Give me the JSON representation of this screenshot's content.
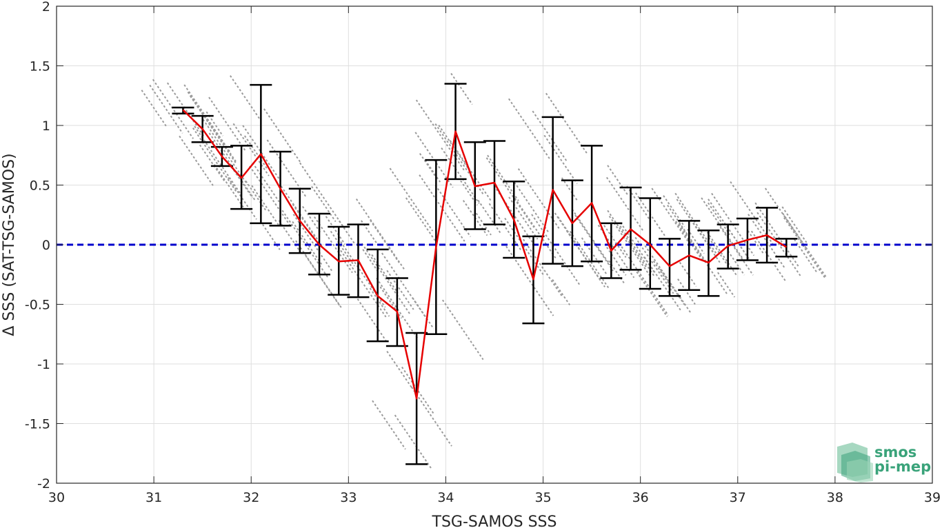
{
  "chart_data": {
    "type": "line",
    "xlabel": "TSG-SAMOS SSS",
    "ylabel": "Δ SSS (SAT-TSG-SAMOS)",
    "xlim": [
      30,
      39
    ],
    "ylim": [
      -2,
      2
    ],
    "xticks": [
      30,
      31,
      32,
      33,
      34,
      35,
      36,
      37,
      38,
      39
    ],
    "yticks": [
      -2,
      -1.5,
      -1,
      -0.5,
      0,
      0.5,
      1,
      1.5,
      2
    ],
    "grid": true,
    "reference_line": {
      "y": 0,
      "color": "#0000cc",
      "style": "dashed"
    },
    "series": [
      {
        "color": "#e60000",
        "x": [
          31.3,
          31.5,
          31.7,
          31.9,
          32.1,
          32.3,
          32.5,
          32.7,
          32.9,
          33.1,
          33.3,
          33.5,
          33.7,
          33.9,
          34.1,
          34.3,
          34.5,
          34.7,
          34.9,
          35.1,
          35.3,
          35.5,
          35.7,
          35.9,
          36.1,
          36.3,
          36.5,
          36.7,
          36.9,
          37.1,
          37.3,
          37.5
        ],
        "y": [
          1.13,
          0.97,
          0.74,
          0.56,
          0.76,
          0.47,
          0.2,
          0.0,
          -0.14,
          -0.13,
          -0.43,
          -0.56,
          -1.29,
          -0.02,
          0.95,
          0.49,
          0.52,
          0.21,
          -0.29,
          0.46,
          0.18,
          0.35,
          -0.05,
          0.13,
          0.0,
          -0.18,
          -0.09,
          -0.15,
          -0.01,
          0.04,
          0.08,
          -0.02
        ],
        "lower": [
          1.1,
          0.86,
          0.66,
          0.3,
          0.18,
          0.16,
          -0.07,
          -0.25,
          -0.42,
          -0.44,
          -0.81,
          -0.85,
          -1.84,
          -0.75,
          0.55,
          0.13,
          0.17,
          -0.11,
          -0.66,
          -0.16,
          -0.18,
          -0.14,
          -0.28,
          -0.21,
          -0.37,
          -0.43,
          -0.38,
          -0.43,
          -0.2,
          -0.13,
          -0.15,
          -0.1
        ],
        "upper": [
          1.15,
          1.08,
          0.82,
          0.83,
          1.34,
          0.78,
          0.47,
          0.26,
          0.15,
          0.17,
          -0.04,
          -0.28,
          -0.74,
          0.71,
          1.35,
          0.86,
          0.87,
          0.53,
          0.07,
          1.07,
          0.54,
          0.83,
          0.18,
          0.48,
          0.39,
          0.05,
          0.2,
          0.12,
          0.17,
          0.22,
          0.31,
          0.05
        ]
      }
    ],
    "scatter_color": "#9a9a9a",
    "errorbar_color": "#000000"
  },
  "logo": {
    "line1": "smos",
    "line2": "pi-mep"
  }
}
